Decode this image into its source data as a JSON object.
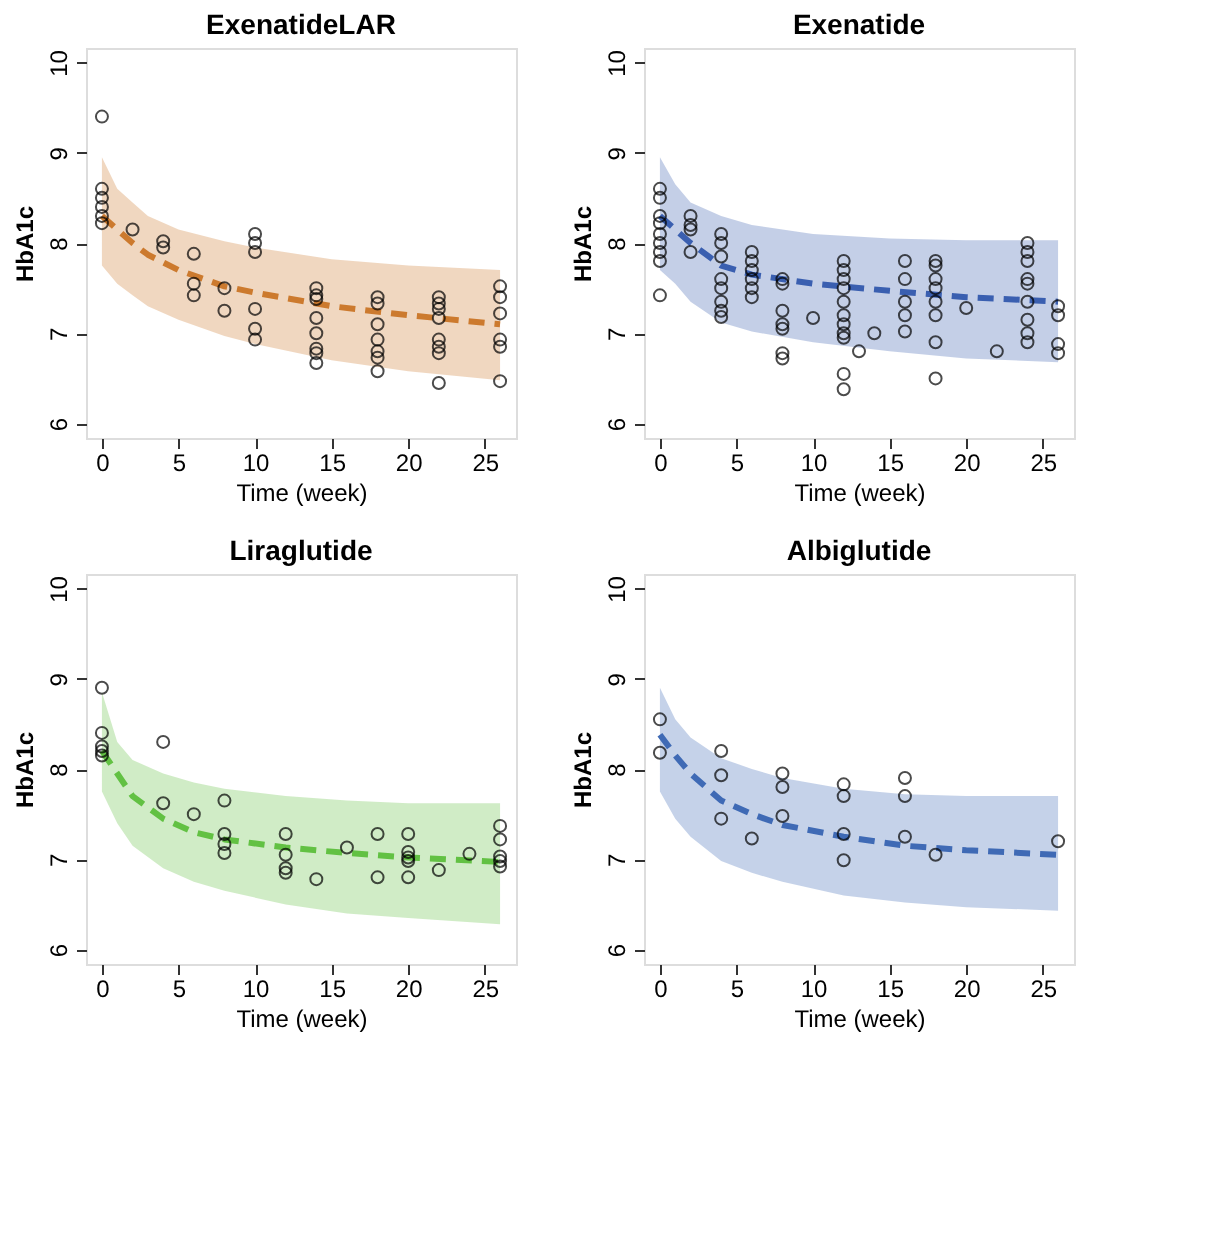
{
  "chart_data": [
    {
      "type": "scatter",
      "title": "ExenatideLAR",
      "xlabel": "Time (week)",
      "ylabel": "HbA1c",
      "xlim": [
        -1.04,
        27.04
      ],
      "ylim": [
        5.84,
        10.16
      ],
      "xticks": [
        0,
        5,
        10,
        15,
        20,
        25
      ],
      "yticks": [
        6,
        7,
        8,
        9,
        10
      ],
      "grid": false,
      "series": [
        {
          "type": "line",
          "line_style": "dashed",
          "color": "#cc7a2e",
          "x": [
            0,
            1,
            2,
            3,
            5,
            8,
            10,
            15,
            20,
            26
          ],
          "values": [
            8.3,
            8.15,
            8.0,
            7.87,
            7.7,
            7.52,
            7.45,
            7.3,
            7.2,
            7.1
          ],
          "upper": [
            8.95,
            8.6,
            8.45,
            8.3,
            8.15,
            8.02,
            7.95,
            7.82,
            7.75,
            7.7
          ],
          "lower": [
            7.75,
            7.55,
            7.42,
            7.3,
            7.15,
            6.97,
            6.88,
            6.7,
            6.58,
            6.48
          ]
        },
        {
          "type": "scatter",
          "marker": "circle",
          "color": "#000000",
          "x": [
            0,
            0,
            0,
            0,
            0,
            0,
            2,
            4,
            4,
            6,
            6,
            6,
            8,
            8,
            10,
            10,
            10,
            10,
            10,
            10,
            14,
            14,
            14,
            14,
            14,
            14,
            14,
            14,
            18,
            18,
            18,
            18,
            18,
            18,
            18,
            22,
            22,
            22,
            22,
            22,
            22,
            22,
            22,
            26,
            26,
            26,
            26,
            26,
            26
          ],
          "values": [
            9.4,
            8.6,
            8.5,
            8.4,
            8.3,
            8.22,
            8.15,
            8.02,
            7.95,
            7.88,
            7.55,
            7.42,
            7.5,
            7.25,
            8.1,
            8.0,
            7.9,
            7.27,
            7.05,
            6.93,
            7.5,
            7.42,
            7.38,
            7.17,
            7.0,
            6.83,
            6.78,
            6.67,
            7.4,
            7.33,
            7.1,
            6.93,
            6.8,
            6.73,
            6.58,
            7.4,
            7.33,
            7.27,
            7.17,
            6.93,
            6.85,
            6.78,
            6.45,
            7.52,
            7.4,
            7.22,
            6.93,
            6.85,
            6.47
          ]
        }
      ]
    },
    {
      "type": "scatter",
      "title": "Exenatide",
      "xlabel": "Time (week)",
      "ylabel": "HbA1c",
      "xlim": [
        -1.04,
        27.04
      ],
      "ylim": [
        5.84,
        10.16
      ],
      "xticks": [
        0,
        5,
        10,
        15,
        20,
        25
      ],
      "yticks": [
        6,
        7,
        8,
        9,
        10
      ],
      "grid": false,
      "series": [
        {
          "type": "line",
          "line_style": "dashed",
          "color": "#3a5fb0",
          "x": [
            0,
            1,
            2,
            4,
            6,
            10,
            15,
            20,
            26
          ],
          "values": [
            8.3,
            8.15,
            8.0,
            7.75,
            7.65,
            7.55,
            7.47,
            7.4,
            7.35
          ],
          "upper": [
            8.95,
            8.65,
            8.45,
            8.3,
            8.2,
            8.1,
            8.05,
            8.03,
            8.03
          ],
          "lower": [
            7.7,
            7.55,
            7.35,
            7.12,
            7.02,
            6.9,
            6.8,
            6.72,
            6.68
          ]
        },
        {
          "type": "scatter",
          "marker": "circle",
          "color": "#000000",
          "x": [
            0,
            0,
            0,
            0,
            0,
            0,
            0,
            0,
            0,
            2,
            2,
            2,
            2,
            4,
            4,
            4,
            4,
            4,
            4,
            4,
            4,
            6,
            6,
            6,
            6,
            6,
            6,
            8,
            8,
            8,
            8,
            8,
            8,
            8,
            10,
            12,
            12,
            12,
            12,
            12,
            12,
            12,
            12,
            12,
            12,
            12,
            13,
            14,
            16,
            16,
            16,
            16,
            16,
            18,
            18,
            18,
            18,
            18,
            18,
            18,
            18,
            20,
            22,
            24,
            24,
            24,
            24,
            24,
            24,
            24,
            24,
            24,
            26,
            26,
            26,
            26
          ],
          "values": [
            8.6,
            8.5,
            8.3,
            8.22,
            8.1,
            8.0,
            7.9,
            7.8,
            7.42,
            8.3,
            8.2,
            8.15,
            7.9,
            8.1,
            8.0,
            7.85,
            7.6,
            7.5,
            7.35,
            7.25,
            7.18,
            7.9,
            7.8,
            7.7,
            7.6,
            7.5,
            7.4,
            7.6,
            7.55,
            7.25,
            7.1,
            7.05,
            6.78,
            6.72,
            7.17,
            7.8,
            7.7,
            7.6,
            7.5,
            7.35,
            7.2,
            7.1,
            7.0,
            6.95,
            6.55,
            6.38,
            6.8,
            7.0,
            7.8,
            7.6,
            7.35,
            7.2,
            7.02,
            7.8,
            7.75,
            7.6,
            7.5,
            7.35,
            7.2,
            6.9,
            6.5,
            7.28,
            6.8,
            8.0,
            7.9,
            7.8,
            7.6,
            7.55,
            7.35,
            7.15,
            7.0,
            6.9,
            7.3,
            7.2,
            6.88,
            6.78
          ]
        }
      ]
    },
    {
      "type": "scatter",
      "title": "Liraglutide",
      "xlabel": "Time (week)",
      "ylabel": "HbA1c",
      "xlim": [
        -1.04,
        27.04
      ],
      "ylim": [
        5.84,
        10.16
      ],
      "xticks": [
        0,
        5,
        10,
        15,
        20,
        25
      ],
      "yticks": [
        6,
        7,
        8,
        9,
        10
      ],
      "grid": false,
      "series": [
        {
          "type": "line",
          "line_style": "dashed",
          "color": "#62c143",
          "x": [
            0,
            1,
            2,
            4,
            6,
            8,
            12,
            16,
            20,
            26
          ],
          "values": [
            8.2,
            7.95,
            7.7,
            7.45,
            7.3,
            7.22,
            7.13,
            7.07,
            7.02,
            6.97
          ],
          "upper": [
            8.85,
            8.3,
            8.1,
            7.95,
            7.85,
            7.78,
            7.7,
            7.65,
            7.62,
            7.62
          ],
          "lower": [
            7.75,
            7.4,
            7.15,
            6.9,
            6.75,
            6.65,
            6.5,
            6.4,
            6.35,
            6.28
          ]
        },
        {
          "type": "scatter",
          "marker": "circle",
          "color": "#000000",
          "x": [
            0,
            0,
            0,
            0,
            0,
            4,
            4,
            6,
            8,
            8,
            8,
            8,
            12,
            12,
            12,
            12,
            14,
            16,
            18,
            18,
            20,
            20,
            20,
            20,
            20,
            22,
            24,
            26,
            26,
            26,
            26,
            26
          ],
          "values": [
            8.9,
            8.4,
            8.25,
            8.2,
            8.15,
            8.3,
            7.62,
            7.5,
            7.65,
            7.28,
            7.17,
            7.07,
            7.28,
            7.05,
            6.9,
            6.85,
            6.78,
            7.13,
            7.28,
            6.8,
            7.28,
            7.08,
            7.02,
            6.98,
            6.8,
            6.88,
            7.06,
            7.37,
            7.22,
            7.03,
            6.98,
            6.92
          ]
        }
      ]
    },
    {
      "type": "scatter",
      "title": "Albiglutide",
      "xlabel": "Time (week)",
      "ylabel": "HbA1c",
      "xlim": [
        -1.04,
        27.04
      ],
      "ylim": [
        5.84,
        10.16
      ],
      "xticks": [
        0,
        5,
        10,
        15,
        20,
        25
      ],
      "yticks": [
        6,
        7,
        8,
        9,
        10
      ],
      "grid": false,
      "series": [
        {
          "type": "line",
          "line_style": "dashed",
          "color": "#3f6ab5",
          "x": [
            0,
            1,
            2,
            4,
            6,
            8,
            12,
            16,
            20,
            26
          ],
          "values": [
            8.38,
            8.15,
            7.95,
            7.65,
            7.5,
            7.38,
            7.25,
            7.15,
            7.1,
            7.05
          ],
          "upper": [
            8.9,
            8.55,
            8.35,
            8.12,
            8.0,
            7.9,
            7.78,
            7.72,
            7.7,
            7.7
          ],
          "lower": [
            7.75,
            7.45,
            7.25,
            6.98,
            6.85,
            6.75,
            6.6,
            6.52,
            6.47,
            6.43
          ]
        },
        {
          "type": "scatter",
          "marker": "circle",
          "color": "#000000",
          "x": [
            0,
            0,
            4,
            4,
            4,
            6,
            8,
            8,
            8,
            12,
            12,
            12,
            12,
            16,
            16,
            16,
            18,
            26
          ],
          "values": [
            8.55,
            8.18,
            8.2,
            7.93,
            7.45,
            7.23,
            7.95,
            7.8,
            7.48,
            7.83,
            7.7,
            7.28,
            6.99,
            7.9,
            7.7,
            7.25,
            7.05,
            7.2
          ]
        }
      ]
    }
  ]
}
